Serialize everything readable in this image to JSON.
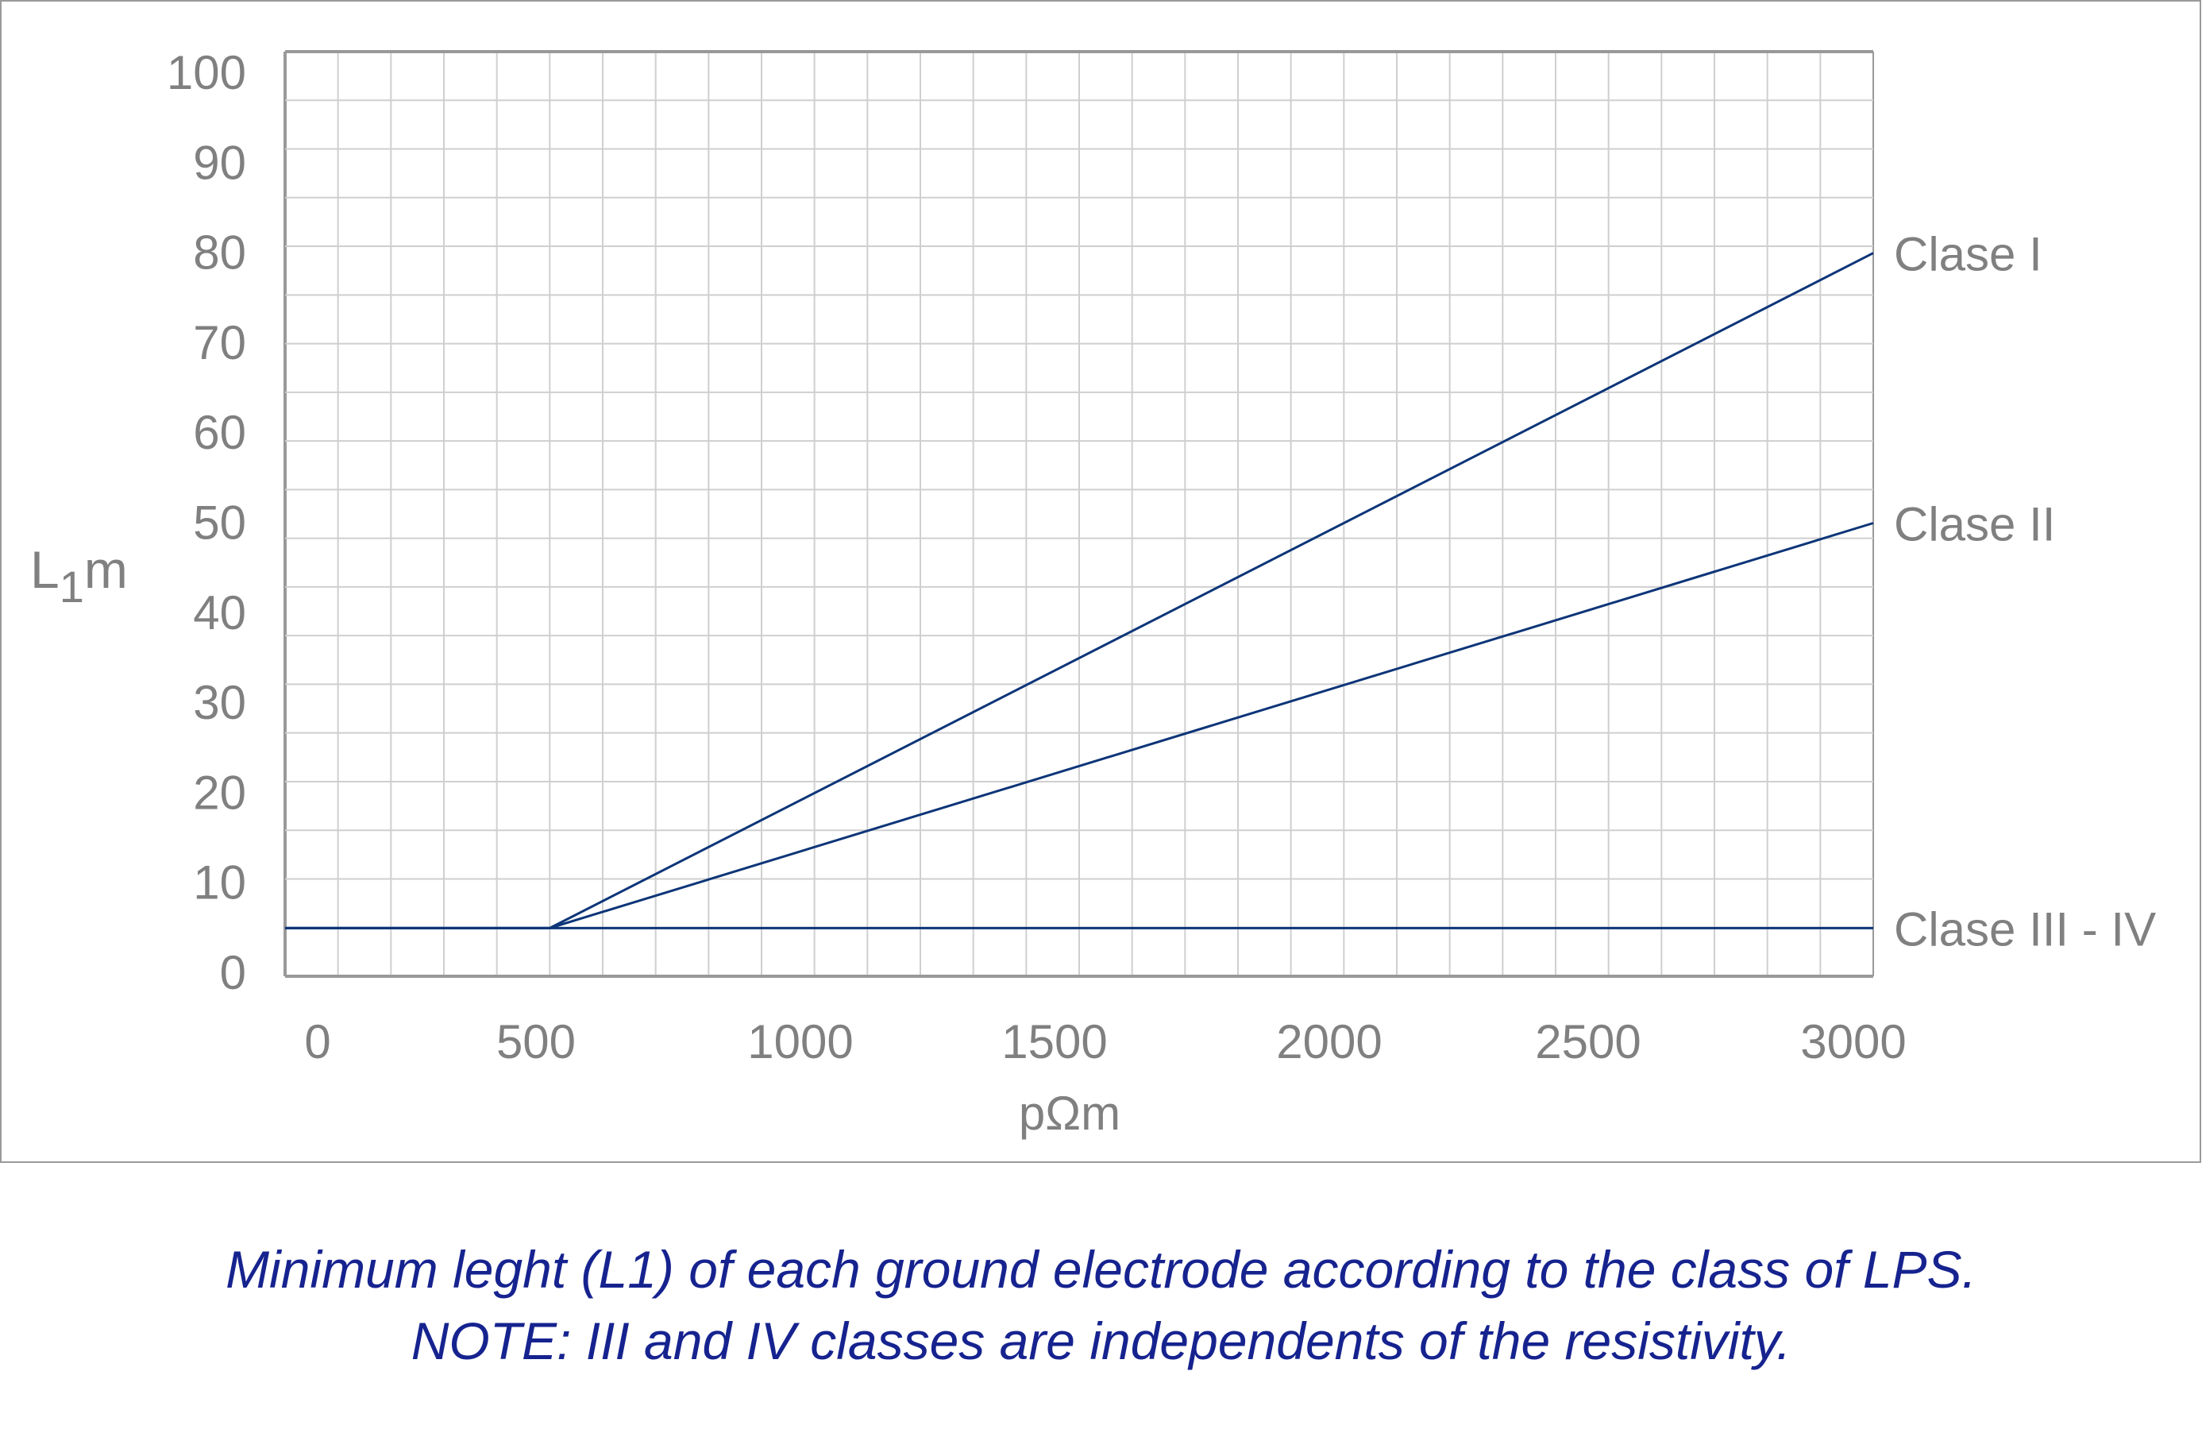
{
  "chart_data": {
    "type": "line",
    "title": "",
    "xlabel": "pΩm",
    "ylabel": {
      "main": "L",
      "sub": "1",
      "unit": "m"
    },
    "xlim": [
      0,
      3000
    ],
    "ylim": [
      0,
      100
    ],
    "grid": true,
    "x_ticks": [
      "0",
      "500",
      "1000",
      "1500",
      "2000",
      "2500",
      "3000"
    ],
    "y_ticks": [
      "0",
      "10",
      "20",
      "30",
      "40",
      "50",
      "60",
      "70",
      "80",
      "90",
      "100"
    ],
    "series": [
      {
        "name": "Clase I",
        "x": [
          0,
          500,
          3000
        ],
        "y": [
          5,
          5,
          80
        ]
      },
      {
        "name": "Clase II",
        "x": [
          0,
          500,
          3000
        ],
        "y": [
          5,
          5,
          50
        ]
      },
      {
        "name": "Clase III - IV",
        "x": [
          0,
          3000
        ],
        "y": [
          5,
          5
        ]
      }
    ],
    "line_color": "#0d3578",
    "legend": "inline-right"
  },
  "caption": {
    "line1": "Minimum leght (L1) of each ground electrode according to the class of LPS.",
    "line2": "NOTE: III and IV classes are independents of the resistivity."
  }
}
